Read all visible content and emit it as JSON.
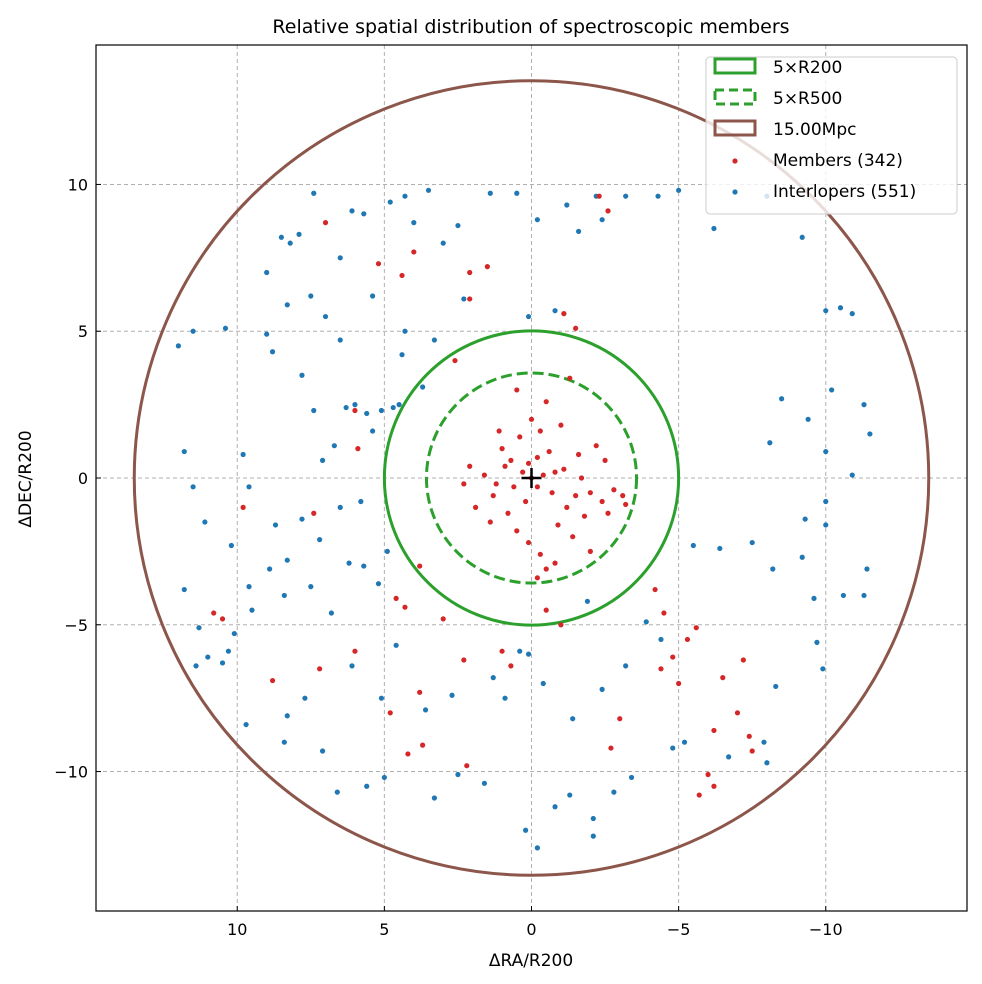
{
  "chart_data": {
    "type": "scatter",
    "title": "Relative spatial distribution of spectroscopic members",
    "xlabel": "ΔRA/R200",
    "ylabel": "ΔDEC/R200",
    "xlim": [
      14.8,
      -14.8
    ],
    "ylim": [
      -14.75,
      14.75
    ],
    "x_inverted": true,
    "grid": true,
    "xticks": [
      10,
      5,
      0,
      -5,
      -10
    ],
    "xtick_labels": [
      "10",
      "5",
      "0",
      "−5",
      "−10"
    ],
    "yticks": [
      10,
      5,
      0,
      -5,
      -10
    ],
    "ytick_labels": [
      "10",
      "5",
      "0",
      "−5",
      "−10"
    ],
    "legend_placement": "top-right",
    "circles": [
      {
        "name": "5×R200",
        "radius": 5.0,
        "color": "#2ca02c",
        "style": "solid"
      },
      {
        "name": "5×R500",
        "radius": 3.57,
        "color": "#2ca02c",
        "style": "dashed"
      },
      {
        "name": "15.00Mpc",
        "radius": 13.5,
        "color": "#8c564b",
        "style": "solid"
      }
    ],
    "center_marker": [
      0,
      0
    ],
    "series": [
      {
        "name": "Members (342)",
        "color": "#d62728",
        "points": [
          [
            0,
            0
          ],
          [
            0.3,
            0.2
          ],
          [
            -0.4,
            0.1
          ],
          [
            0.6,
            -0.3
          ],
          [
            -0.7,
            -0.5
          ],
          [
            0.2,
            -0.8
          ],
          [
            -0.2,
            0.7
          ],
          [
            0.9,
            0.4
          ],
          [
            -1.1,
            0.3
          ],
          [
            1.2,
            -0.2
          ],
          [
            -1.5,
            -0.6
          ],
          [
            -2.0,
            -0.5
          ],
          [
            -2.4,
            -0.8
          ],
          [
            -2.8,
            -0.4
          ],
          [
            -3.1,
            -0.6
          ],
          [
            -3.2,
            -0.9
          ],
          [
            -2.6,
            -1.2
          ],
          [
            -1.8,
            -1.3
          ],
          [
            -1.2,
            -1.0
          ],
          [
            -0.9,
            -1.6
          ],
          [
            0.5,
            -1.8
          ],
          [
            0.1,
            -2.2
          ],
          [
            -0.3,
            -2.6
          ],
          [
            -0.5,
            -3.1
          ],
          [
            -0.2,
            -3.4
          ],
          [
            -0.8,
            -2.9
          ],
          [
            0.8,
            -1.2
          ],
          [
            1.3,
            -0.6
          ],
          [
            1.6,
            0.1
          ],
          [
            2.1,
            0.4
          ],
          [
            2.3,
            -0.2
          ],
          [
            1.0,
            1.0
          ],
          [
            0.4,
            1.4
          ],
          [
            -0.3,
            1.6
          ],
          [
            -1.0,
            1.8
          ],
          [
            0.0,
            2.0
          ],
          [
            -0.6,
            0.9
          ],
          [
            -1.6,
            0.8
          ],
          [
            -2.2,
            1.1
          ],
          [
            -2.5,
            0.6
          ],
          [
            1.9,
            -1.0
          ],
          [
            1.4,
            -1.5
          ],
          [
            -1.4,
            -2.0
          ],
          [
            -2.0,
            -2.5
          ],
          [
            -1.7,
            0.0
          ],
          [
            0.7,
            0.6
          ],
          [
            -0.2,
            -0.3
          ],
          [
            0.1,
            0.5
          ],
          [
            -0.8,
            0.2
          ],
          [
            1.1,
            1.6
          ],
          [
            -0.5,
            2.6
          ],
          [
            0.5,
            3.0
          ],
          [
            -1.3,
            3.4
          ],
          [
            2.6,
            4.0
          ],
          [
            2.1,
            6.1
          ],
          [
            1.5,
            7.2
          ],
          [
            -1.1,
            5.6
          ],
          [
            -1.5,
            5.1
          ],
          [
            -2.6,
            9.1
          ],
          [
            -2.3,
            9.6
          ],
          [
            4.0,
            7.7
          ],
          [
            5.2,
            7.3
          ],
          [
            4.4,
            6.9
          ],
          [
            2.1,
            7.0
          ],
          [
            7.0,
            8.7
          ],
          [
            6.0,
            2.3
          ],
          [
            5.9,
            1.0
          ],
          [
            7.4,
            -1.2
          ],
          [
            9.8,
            -1.0
          ],
          [
            4.6,
            -4.1
          ],
          [
            4.3,
            -4.4
          ],
          [
            3.8,
            -3.0
          ],
          [
            3.0,
            -4.8
          ],
          [
            2.3,
            -6.2
          ],
          [
            1.0,
            -5.9
          ],
          [
            0.7,
            -6.4
          ],
          [
            -0.5,
            -4.5
          ],
          [
            -1.0,
            -5.0
          ],
          [
            -4.2,
            -3.8
          ],
          [
            -4.5,
            -4.6
          ],
          [
            -4.4,
            -6.5
          ],
          [
            -5.0,
            -7.0
          ],
          [
            -5.3,
            -5.5
          ],
          [
            -5.6,
            -5.1
          ],
          [
            -6.5,
            -6.8
          ],
          [
            -7.2,
            -6.2
          ],
          [
            -7.0,
            -8.0
          ],
          [
            -6.2,
            -8.6
          ],
          [
            -7.4,
            -8.8
          ],
          [
            -7.5,
            -9.3
          ],
          [
            -6.0,
            -10.1
          ],
          [
            -5.7,
            -10.8
          ],
          [
            -6.2,
            -10.5
          ],
          [
            -4.8,
            -6.1
          ],
          [
            4.8,
            -8.0
          ],
          [
            3.7,
            -9.1
          ],
          [
            4.2,
            -9.4
          ],
          [
            3.8,
            -7.3
          ],
          [
            6.0,
            -5.9
          ],
          [
            7.2,
            -6.5
          ],
          [
            8.8,
            -6.9
          ],
          [
            10.5,
            -4.8
          ],
          [
            10.8,
            -4.6
          ],
          [
            2.2,
            -9.8
          ],
          [
            -3.0,
            -8.2
          ],
          [
            -2.7,
            -9.2
          ]
        ]
      },
      {
        "name": "Interlopers (551)",
        "color": "#1f77b4",
        "points": [
          [
            11.8,
            0.9
          ],
          [
            11.5,
            -0.3
          ],
          [
            11.1,
            -1.5
          ],
          [
            10.2,
            -2.3
          ],
          [
            9.8,
            0.8
          ],
          [
            9.6,
            -0.3
          ],
          [
            8.7,
            -1.6
          ],
          [
            8.3,
            -2.8
          ],
          [
            7.8,
            -1.4
          ],
          [
            7.2,
            -2.1
          ],
          [
            6.5,
            -1.0
          ],
          [
            5.8,
            -0.8
          ],
          [
            7.1,
            0.6
          ],
          [
            8.9,
            -3.1
          ],
          [
            9.6,
            -3.7
          ],
          [
            10.1,
            -5.3
          ],
          [
            10.3,
            -5.9
          ],
          [
            10.5,
            -6.3
          ],
          [
            11.0,
            -6.1
          ],
          [
            11.4,
            -6.4
          ],
          [
            11.8,
            -3.8
          ],
          [
            11.3,
            -5.1
          ],
          [
            9.5,
            -4.5
          ],
          [
            8.4,
            -4.0
          ],
          [
            7.5,
            -3.7
          ],
          [
            6.8,
            -4.6
          ],
          [
            5.7,
            -3.0
          ],
          [
            6.2,
            -2.9
          ],
          [
            4.9,
            -2.5
          ],
          [
            5.2,
            -3.6
          ],
          [
            12.0,
            4.5
          ],
          [
            11.5,
            5.0
          ],
          [
            10.4,
            5.1
          ],
          [
            9.0,
            4.9
          ],
          [
            8.8,
            4.3
          ],
          [
            7.8,
            3.5
          ],
          [
            7.0,
            5.5
          ],
          [
            6.5,
            4.7
          ],
          [
            6.3,
            2.4
          ],
          [
            6.0,
            2.5
          ],
          [
            5.6,
            2.2
          ],
          [
            5.1,
            2.3
          ],
          [
            4.7,
            2.4
          ],
          [
            4.5,
            2.5
          ],
          [
            5.4,
            1.6
          ],
          [
            6.7,
            1.1
          ],
          [
            7.4,
            2.3
          ],
          [
            8.3,
            5.9
          ],
          [
            9.0,
            7.0
          ],
          [
            8.5,
            8.2
          ],
          [
            8.2,
            8.0
          ],
          [
            7.9,
            8.3
          ],
          [
            7.5,
            6.2
          ],
          [
            6.5,
            7.5
          ],
          [
            6.1,
            9.1
          ],
          [
            7.4,
            9.7
          ],
          [
            5.7,
            9.0
          ],
          [
            4.8,
            9.4
          ],
          [
            4.3,
            9.6
          ],
          [
            3.5,
            9.8
          ],
          [
            3.0,
            8.0
          ],
          [
            2.5,
            8.6
          ],
          [
            4.0,
            8.7
          ],
          [
            5.4,
            6.2
          ],
          [
            4.3,
            5.0
          ],
          [
            4.4,
            4.2
          ],
          [
            3.7,
            3.1
          ],
          [
            3.3,
            4.7
          ],
          [
            2.3,
            6.1
          ],
          [
            1.4,
            9.7
          ],
          [
            0.5,
            9.7
          ],
          [
            -0.2,
            8.8
          ],
          [
            -1.2,
            9.3
          ],
          [
            -1.6,
            8.4
          ],
          [
            -2.2,
            9.6
          ],
          [
            -2.4,
            8.8
          ],
          [
            -3.2,
            9.6
          ],
          [
            -4.3,
            9.6
          ],
          [
            -5.0,
            9.8
          ],
          [
            -6.2,
            8.5
          ],
          [
            -8.0,
            9.6
          ],
          [
            -9.2,
            8.2
          ],
          [
            -10.0,
            5.7
          ],
          [
            -10.5,
            5.8
          ],
          [
            -10.9,
            5.6
          ],
          [
            -11.3,
            2.5
          ],
          [
            -11.5,
            1.5
          ],
          [
            -10.2,
            3.0
          ],
          [
            -9.4,
            2.0
          ],
          [
            -8.5,
            2.7
          ],
          [
            -8.1,
            1.2
          ],
          [
            -10.0,
            0.9
          ],
          [
            -10.9,
            0.1
          ],
          [
            -10.0,
            -0.8
          ],
          [
            -9.3,
            -1.4
          ],
          [
            -10.0,
            -1.6
          ],
          [
            -9.2,
            -2.7
          ],
          [
            -8.2,
            -3.1
          ],
          [
            -7.5,
            -2.2
          ],
          [
            -6.4,
            -2.4
          ],
          [
            -5.5,
            -2.3
          ],
          [
            -9.6,
            -4.1
          ],
          [
            -10.6,
            -4.0
          ],
          [
            -11.4,
            -3.1
          ],
          [
            -11.3,
            -4.0
          ],
          [
            -9.7,
            -5.6
          ],
          [
            -9.9,
            -6.5
          ],
          [
            -8.3,
            -7.1
          ],
          [
            -7.9,
            -9.0
          ],
          [
            -8.0,
            -9.7
          ],
          [
            -6.7,
            -9.5
          ],
          [
            -5.2,
            -9.0
          ],
          [
            -4.8,
            -9.2
          ],
          [
            -3.4,
            -10.2
          ],
          [
            -2.8,
            -10.7
          ],
          [
            -2.1,
            -11.6
          ],
          [
            -1.3,
            -10.8
          ],
          [
            -0.8,
            -11.2
          ],
          [
            0.2,
            -12.0
          ],
          [
            -0.2,
            -12.6
          ],
          [
            -2.1,
            -12.2
          ],
          [
            1.6,
            -10.4
          ],
          [
            2.5,
            -10.1
          ],
          [
            3.3,
            -10.9
          ],
          [
            5.0,
            -10.2
          ],
          [
            5.6,
            -10.5
          ],
          [
            6.6,
            -10.7
          ],
          [
            7.1,
            -9.3
          ],
          [
            8.4,
            -9.0
          ],
          [
            9.7,
            -8.4
          ],
          [
            8.3,
            -8.1
          ],
          [
            7.7,
            -7.5
          ],
          [
            5.1,
            -7.5
          ],
          [
            3.6,
            -7.9
          ],
          [
            2.7,
            -7.4
          ],
          [
            1.3,
            -6.8
          ],
          [
            0.4,
            -5.9
          ],
          [
            -0.4,
            -7.0
          ],
          [
            -1.4,
            -8.2
          ],
          [
            -2.4,
            -7.2
          ],
          [
            -3.2,
            -6.4
          ],
          [
            -4.4,
            -5.5
          ],
          [
            -3.9,
            -4.9
          ],
          [
            -1.9,
            -4.2
          ],
          [
            0.1,
            -6.0
          ],
          [
            0.9,
            -7.5
          ],
          [
            4.6,
            -5.7
          ],
          [
            6.1,
            -6.4
          ],
          [
            0.1,
            5.5
          ],
          [
            -0.8,
            5.7
          ]
        ]
      }
    ]
  }
}
